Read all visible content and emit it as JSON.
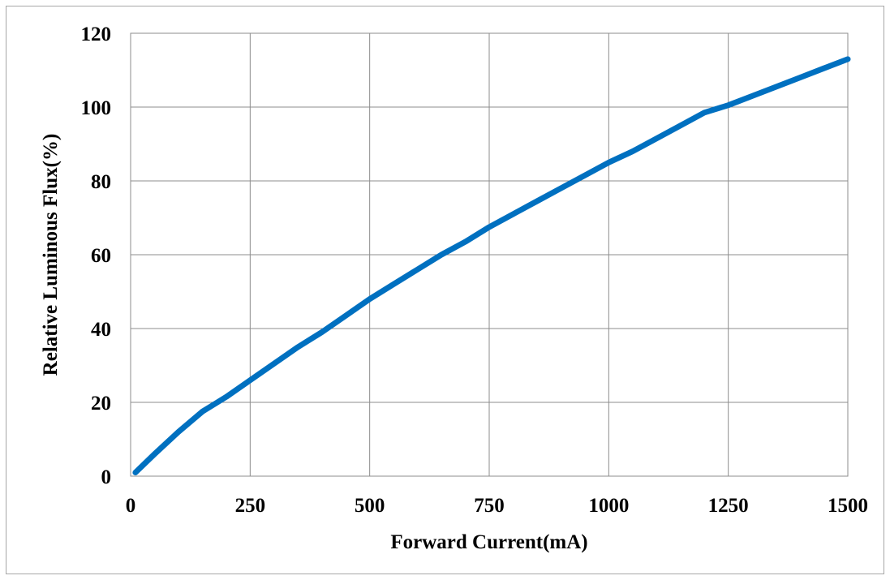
{
  "chart_data": {
    "type": "line",
    "title": "",
    "xlabel": "Forward Current(mA)",
    "ylabel": "Relative Luminous Flux(%)",
    "xlim": [
      0,
      1500
    ],
    "ylim": [
      0,
      120
    ],
    "xticks": [
      0,
      250,
      500,
      750,
      1000,
      1250,
      1500
    ],
    "yticks": [
      0,
      20,
      40,
      60,
      80,
      100,
      120
    ],
    "grid": true,
    "legend": "none",
    "series": [
      {
        "color": "#0070c0",
        "x": [
          10,
          50,
          100,
          150,
          200,
          250,
          300,
          350,
          400,
          450,
          500,
          550,
          600,
          650,
          700,
          750,
          800,
          850,
          900,
          950,
          1000,
          1050,
          1100,
          1150,
          1200,
          1250,
          1300,
          1350,
          1400,
          1450,
          1500
        ],
        "y": [
          1,
          6,
          12,
          17.5,
          21.5,
          26,
          30.5,
          35,
          39,
          43.5,
          48,
          52,
          56,
          60,
          63.5,
          67.5,
          71,
          74.5,
          78,
          81.5,
          85,
          88,
          91.5,
          95,
          98.5,
          100.5,
          103,
          105.5,
          108,
          110.5,
          113
        ]
      }
    ]
  }
}
